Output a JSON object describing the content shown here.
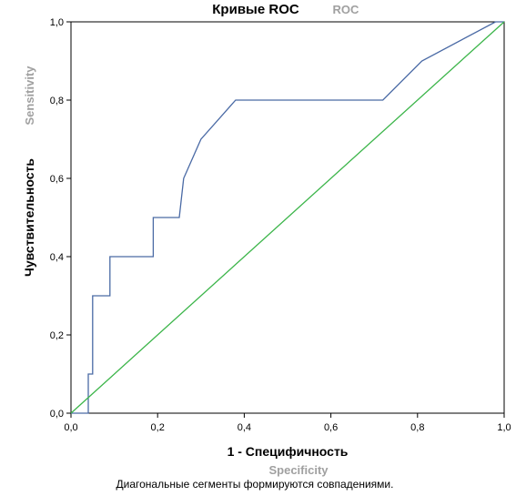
{
  "chart_data": {
    "type": "line",
    "title": "Кривые ROC",
    "subtitle": "ROC",
    "xlabel": "1 - Специфичность",
    "xlabel_secondary": "Specificity",
    "ylabel": "Чувствительность",
    "ylabel_secondary": "Sensitivity",
    "footnote": "Диагональные сегменты формируются совпадениями.",
    "xlim": [
      0,
      1
    ],
    "ylim": [
      0,
      1
    ],
    "x_ticks": [
      "0,0",
      "0,2",
      "0,4",
      "0,6",
      "0,8",
      "1,0"
    ],
    "y_ticks": [
      "0,0",
      "0,2",
      "0,4",
      "0,6",
      "0,8",
      "1,0"
    ],
    "grid": false,
    "colors": {
      "roc": "#4a6aa5",
      "reference": "#3cb54a",
      "axis": "#000000"
    },
    "series": [
      {
        "x": [
          0.0,
          0.04,
          0.04,
          0.05,
          0.05,
          0.09,
          0.09,
          0.19,
          0.19,
          0.21,
          0.21,
          0.25,
          0.26,
          0.3,
          0.38,
          0.72,
          0.81,
          0.98,
          1.0
        ],
        "y": [
          0.0,
          0.0,
          0.1,
          0.1,
          0.3,
          0.3,
          0.4,
          0.4,
          0.5,
          0.5,
          0.5,
          0.5,
          0.6,
          0.7,
          0.8,
          0.8,
          0.9,
          1.0,
          1.0
        ]
      },
      {
        "x": [
          0.0,
          1.0
        ],
        "y": [
          0.0,
          1.0
        ]
      }
    ]
  }
}
